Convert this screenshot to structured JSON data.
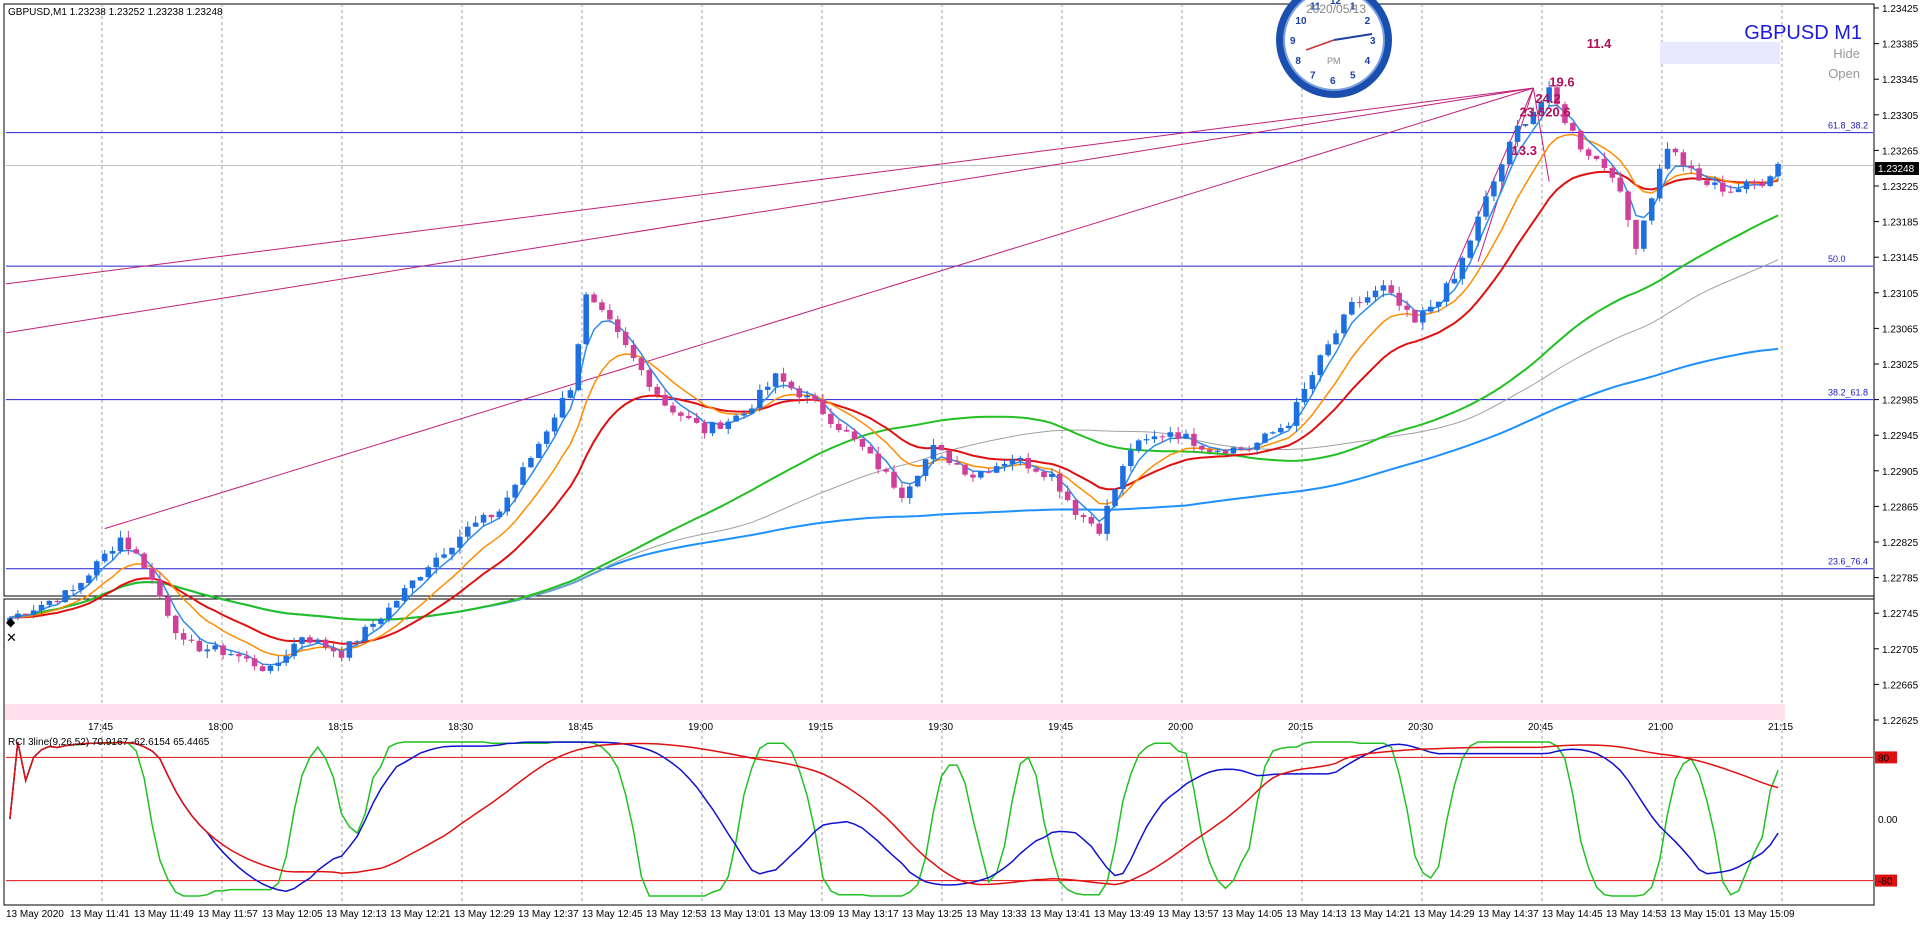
{
  "header": {
    "symbol_info": "GBPUSD,M1  1.23238 1.23252 1.23238 1.23248",
    "title_big": "GBPUSD M1",
    "hide_label": "Hide",
    "open_label": "Open"
  },
  "clock": {
    "date": "2020/05/13",
    "ampm": "PM",
    "numbers": [
      "12",
      "1",
      "2",
      "3",
      "4",
      "5",
      "6",
      "7",
      "8",
      "9",
      "10",
      "11"
    ]
  },
  "price_axis": {
    "ticks": [
      "1.23425",
      "1.23385",
      "1.23345",
      "1.23305",
      "1.23265",
      "1.23225",
      "1.23185",
      "1.23145",
      "1.23105",
      "1.23065",
      "1.23025",
      "1.22985",
      "1.22945",
      "1.22905",
      "1.22865",
      "1.22825",
      "1.22785",
      "1.22745",
      "1.22705",
      "1.22665",
      "1.22625"
    ],
    "current_price": "1.23248"
  },
  "time_axis": {
    "ticks": [
      "17:45",
      "18:00",
      "18:15",
      "18:30",
      "18:45",
      "19:00",
      "19:15",
      "19:30",
      "19:45",
      "20:00",
      "20:15",
      "20:30",
      "20:45",
      "21:00",
      "21:15"
    ]
  },
  "fibo_levels": [
    {
      "label": "61.8_38.2",
      "price": 1.23285
    },
    {
      "label": "50.0",
      "price": 1.23135
    },
    {
      "label": "38.2_61.8",
      "price": 1.22985
    },
    {
      "label": "23.6_76.4",
      "price": 1.22795
    }
  ],
  "fan_labels": [
    "11.4",
    "19.6",
    "24.2",
    "23.6",
    "20.6",
    "13.3"
  ],
  "rci": {
    "header": "RCI 3line(9,26,52) 70.9167 -62.6154 65.4465",
    "levels": [
      "80",
      "0.00",
      "-80"
    ],
    "axis_ticks": [
      "13 May 2020",
      "13 May 11:41",
      "13 May 11:49",
      "13 May 11:57",
      "13 May 12:05",
      "13 May 12:13",
      "13 May 12:21",
      "13 May 12:29",
      "13 May 12:37",
      "13 May 12:45",
      "13 May 12:53",
      "13 May 13:01",
      "13 May 13:09",
      "13 May 13:17",
      "13 May 13:25",
      "13 May 13:33",
      "13 May 13:41",
      "13 May 13:49",
      "13 May 13:57",
      "13 May 14:05",
      "13 May 14:13",
      "13 May 14:21",
      "13 May 14:29",
      "13 May 14:37",
      "13 May 14:45",
      "13 May 14:53",
      "13 May 15:01",
      "13 May 15:09"
    ]
  },
  "colors": {
    "bull": "#1e6fe0",
    "bear": "#d0409a",
    "ema_fast": "#2e8be8",
    "ema_orange": "#ff8c00",
    "ema_red": "#e01010",
    "ma_gray": "#a0a0a0",
    "ma_green": "#22c022",
    "ma_blue": "#1e90ff",
    "fibo": "#2020d0",
    "fan": "#c0207a",
    "rci_green": "#22c022",
    "rci_blue": "#1010d0",
    "rci_red": "#e01010"
  },
  "chart_data": {
    "type": "candlestick",
    "symbol": "GBPUSD",
    "timeframe": "M1",
    "ylim": [
      1.22625,
      1.23425
    ],
    "close_path": [
      [
        0,
        1.2274
      ],
      [
        8,
        1.2277
      ],
      [
        14,
        1.2283
      ],
      [
        17,
        1.228
      ],
      [
        22,
        1.2271
      ],
      [
        28,
        1.227
      ],
      [
        33,
        1.2268
      ],
      [
        37,
        1.2272
      ],
      [
        42,
        1.227
      ],
      [
        48,
        1.2275
      ],
      [
        53,
        1.228
      ],
      [
        58,
        1.2284
      ],
      [
        62,
        1.2286
      ],
      [
        66,
        1.2292
      ],
      [
        71,
        1.23
      ],
      [
        73,
        1.231
      ],
      [
        76,
        1.2307
      ],
      [
        79,
        1.2303
      ],
      [
        83,
        1.2298
      ],
      [
        88,
        1.2295
      ],
      [
        93,
        1.2297
      ],
      [
        97,
        1.2301
      ],
      [
        102,
        1.2298
      ],
      [
        108,
        1.2293
      ],
      [
        113,
        1.2288
      ],
      [
        117,
        1.2293
      ],
      [
        122,
        1.229
      ],
      [
        127,
        1.2292
      ],
      [
        132,
        1.229
      ],
      [
        135,
        1.2286
      ],
      [
        138,
        1.2284
      ],
      [
        142,
        1.2293
      ],
      [
        147,
        1.2295
      ],
      [
        152,
        1.2293
      ],
      [
        157,
        1.2293
      ],
      [
        162,
        1.2296
      ],
      [
        166,
        1.2303
      ],
      [
        170,
        1.2309
      ],
      [
        174,
        1.2311
      ],
      [
        178,
        1.2307
      ],
      [
        183,
        1.2312
      ],
      [
        187,
        1.2321
      ],
      [
        191,
        1.2329
      ],
      [
        195,
        1.2333
      ],
      [
        199,
        1.2327
      ],
      [
        203,
        1.2324
      ],
      [
        206,
        1.2316
      ],
      [
        210,
        1.2327
      ],
      [
        214,
        1.2323
      ],
      [
        218,
        1.2322
      ],
      [
        222,
        1.2323
      ],
      [
        224,
        1.2325
      ]
    ],
    "total_bars": 225
  }
}
